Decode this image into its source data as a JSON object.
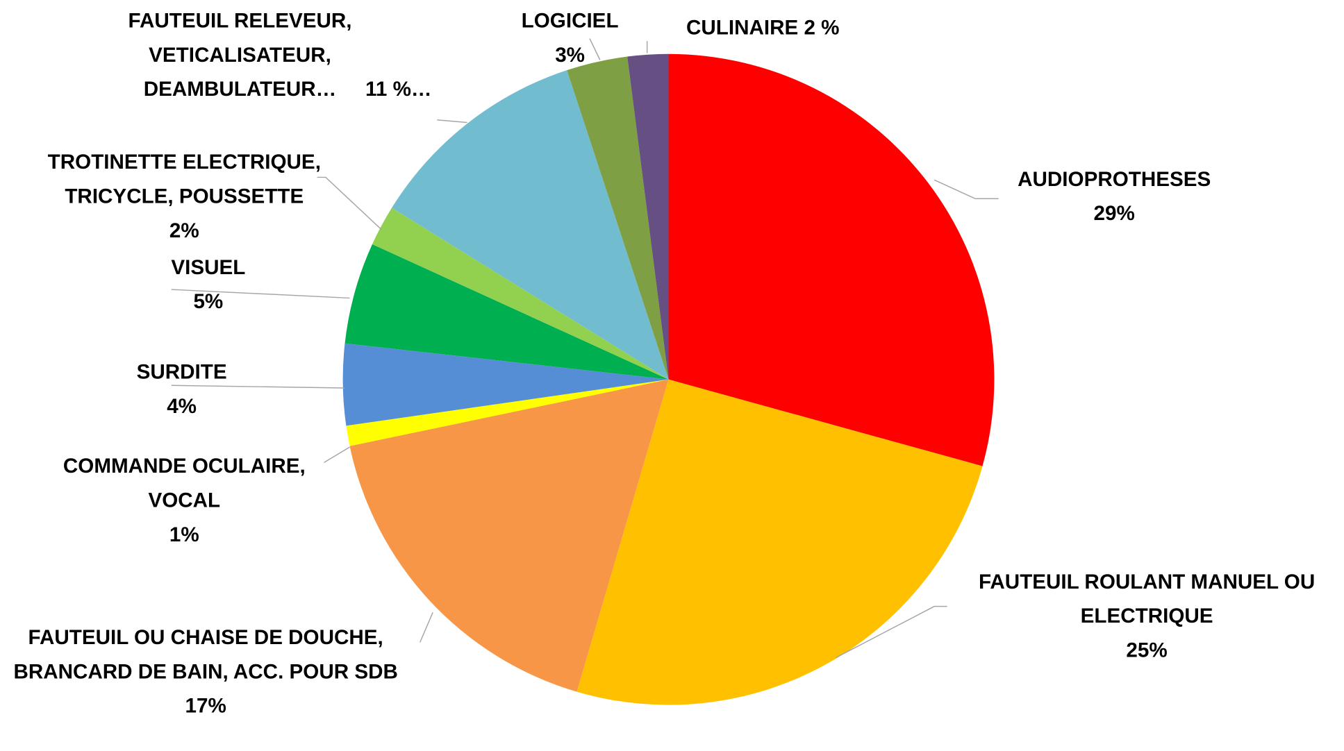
{
  "chart_data": {
    "type": "pie",
    "categories": [
      "AUDIOPROTHESES",
      "FAUTEUIL ROULANT MANUEL OU ELECTRIQUE",
      "FAUTEUIL OU CHAISE DE DOUCHE, BRANCARD DE BAIN, ACC. POUR SDB",
      "COMMANDE OCULAIRE, VOCAL",
      "SURDITE",
      "VISUEL",
      "TROTINETTE ELECTRIQUE, TRICYCLE, POUSSETTE",
      "FAUTEUIL RELEVEUR, VETICALISATEUR, DEAMBULATEUR…",
      "LOGICIEL",
      "CULINAIRE"
    ],
    "values": [
      29,
      25,
      17,
      1,
      4,
      5,
      2,
      11,
      3,
      2
    ],
    "value_labels": [
      "29%",
      "25%",
      "17%",
      "1%",
      "4%",
      "5%",
      "2%",
      "11 %…",
      "3%",
      "2 %"
    ],
    "colors": [
      "#ff0000",
      "#ffc000",
      "#f79646",
      "#ffff00",
      "#558ed5",
      "#00b050",
      "#92d050",
      "#72bcd0",
      "#7f9f45",
      "#664f82"
    ]
  }
}
